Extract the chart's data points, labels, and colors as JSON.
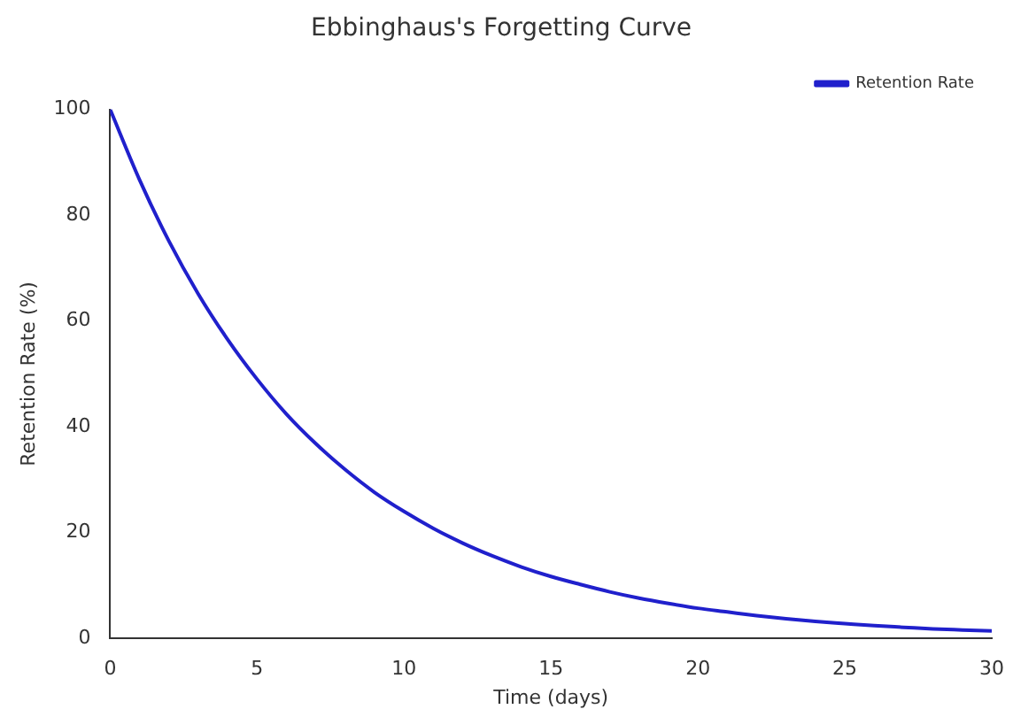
{
  "chart_data": {
    "type": "line",
    "title": "Ebbinghaus's Forgetting Curve",
    "xlabel": "Time (days)",
    "ylabel": "Retention Rate (%)",
    "x": [
      0,
      1,
      2,
      3,
      4,
      5,
      6,
      7,
      8,
      9,
      10,
      11,
      12,
      13,
      14,
      15,
      16,
      17,
      18,
      19,
      20,
      21,
      22,
      23,
      24,
      25,
      26,
      27,
      28,
      29,
      30
    ],
    "series": [
      {
        "name": "Retention Rate",
        "color": "#2020cc",
        "values": [
          100,
          86.7,
          75.1,
          65.1,
          56.5,
          49,
          42.4,
          36.8,
          31.9,
          27.6,
          24,
          20.8,
          18,
          15.6,
          13.5,
          11.7,
          10.2,
          8.8,
          7.6,
          6.6,
          5.7,
          5,
          4.3,
          3.7,
          3.2,
          2.8,
          2.4,
          2.1,
          1.8,
          1.6,
          1.4
        ]
      }
    ],
    "xlim": [
      0,
      30
    ],
    "xticks": [
      0,
      5,
      10,
      15,
      20,
      25,
      30
    ],
    "ylim": [
      0,
      100
    ],
    "yticks": [
      0,
      20,
      40,
      60,
      80,
      100
    ],
    "grid": false,
    "legend": "top right",
    "marker": "none",
    "line_style": "solid"
  }
}
